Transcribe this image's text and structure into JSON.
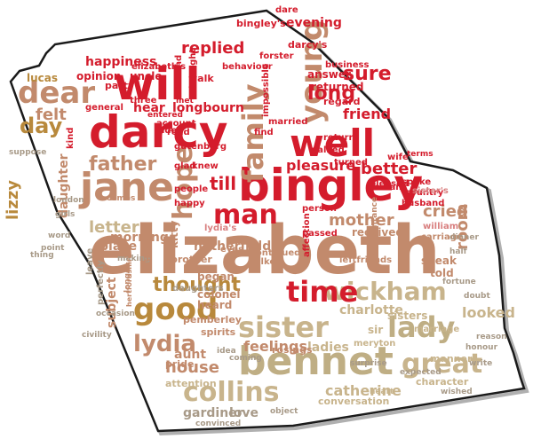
{
  "palette": {
    "red": "#d41c2c",
    "tan": "#c28a6c",
    "gold": "#b8893c",
    "beige": "#c8b48c",
    "khaki": "#bfae84",
    "pink": "#d98080",
    "grey": "#a89a88",
    "outline": "#1a1a1a",
    "shadow": "#b0b0b0"
  },
  "words": [
    {
      "text": "elizabeth",
      "color": "tan"
    },
    {
      "text": "darcy",
      "color": "red"
    },
    {
      "text": "will",
      "color": "red"
    },
    {
      "text": "bingley",
      "color": "red"
    },
    {
      "text": "bennet",
      "color": "khaki"
    },
    {
      "text": "jane",
      "color": "tan"
    },
    {
      "text": "well",
      "color": "red"
    },
    {
      "text": "dear",
      "color": "tan"
    },
    {
      "text": "collins",
      "color": "beige"
    },
    {
      "text": "man",
      "color": "red"
    },
    {
      "text": "sister",
      "color": "beige"
    },
    {
      "text": "lady",
      "color": "khaki"
    },
    {
      "text": "good",
      "color": "gold"
    },
    {
      "text": "wickham",
      "color": "beige"
    },
    {
      "text": "great",
      "color": "beige"
    },
    {
      "text": "time",
      "color": "red"
    },
    {
      "text": "young",
      "color": "tan"
    },
    {
      "text": "family",
      "color": "tan"
    },
    {
      "text": "lydia",
      "color": "tan"
    },
    {
      "text": "father",
      "color": "tan"
    },
    {
      "text": "day",
      "color": "gold"
    },
    {
      "text": "hope",
      "color": "tan"
    },
    {
      "text": "thought",
      "color": "gold"
    },
    {
      "text": "catherine",
      "color": "beige"
    },
    {
      "text": "long",
      "color": "red"
    },
    {
      "text": "sure",
      "color": "red"
    },
    {
      "text": "replied",
      "color": "red"
    },
    {
      "text": "felt",
      "color": "tan"
    },
    {
      "text": "letter",
      "color": "beige"
    },
    {
      "text": "house",
      "color": "tan"
    },
    {
      "text": "better",
      "color": "red"
    },
    {
      "text": "mother",
      "color": "tan"
    },
    {
      "text": "lizzy",
      "color": "gold"
    },
    {
      "text": "room",
      "color": "tan"
    },
    {
      "text": "cried",
      "color": "tan"
    },
    {
      "text": "friend",
      "color": "red"
    },
    {
      "text": "pleasure",
      "color": "red"
    },
    {
      "text": "looked",
      "color": "beige"
    },
    {
      "text": "till",
      "color": "red"
    },
    {
      "text": "morning",
      "color": "tan"
    },
    {
      "text": "feelings",
      "color": "tan"
    },
    {
      "text": "ladies",
      "color": "beige"
    },
    {
      "text": "aunt",
      "color": "tan"
    },
    {
      "text": "hear",
      "color": "red"
    },
    {
      "text": "longbourn",
      "color": "red"
    },
    {
      "text": "evening",
      "color": "red"
    },
    {
      "text": "netherfield",
      "color": "tan"
    },
    {
      "text": "charlotte",
      "color": "beige"
    },
    {
      "text": "place",
      "color": "tan"
    },
    {
      "text": "gardiner",
      "color": "grey"
    },
    {
      "text": "love",
      "color": "grey"
    },
    {
      "text": "daughter",
      "color": "tan"
    },
    {
      "text": "uncle",
      "color": "red"
    },
    {
      "text": "happiness",
      "color": "red"
    },
    {
      "text": "opinion",
      "color": "red"
    },
    {
      "text": "lucas",
      "color": "gold"
    },
    {
      "text": "subject",
      "color": "tan"
    },
    {
      "text": "received",
      "color": "tan"
    },
    {
      "text": "speak",
      "color": "tan"
    },
    {
      "text": "told",
      "color": "tan"
    },
    {
      "text": "answer",
      "color": "red"
    },
    {
      "text": "returned",
      "color": "red"
    },
    {
      "text": "heard",
      "color": "tan"
    },
    {
      "text": "colonel",
      "color": "tan"
    },
    {
      "text": "began",
      "color": "tan"
    },
    {
      "text": "sisters",
      "color": "beige"
    },
    {
      "text": "sir",
      "color": "beige"
    },
    {
      "text": "marriage",
      "color": "beige"
    },
    {
      "text": "conversation",
      "color": "beige"
    },
    {
      "text": "character",
      "color": "beige"
    },
    {
      "text": "manner",
      "color": "beige"
    },
    {
      "text": "attention",
      "color": "beige"
    },
    {
      "text": "pride",
      "color": "tan"
    },
    {
      "text": "kitty",
      "color": "tan"
    },
    {
      "text": "brother",
      "color": "tan"
    },
    {
      "text": "rosings",
      "color": "tan"
    },
    {
      "text": "meryton",
      "color": "beige"
    },
    {
      "text": "pemberley",
      "color": "tan"
    },
    {
      "text": "spirits",
      "color": "tan"
    },
    {
      "text": "dare",
      "color": "red"
    },
    {
      "text": "forster",
      "color": "red"
    },
    {
      "text": "darcy's",
      "color": "red"
    },
    {
      "text": "bingley's",
      "color": "red"
    },
    {
      "text": "behaviour",
      "color": "red"
    },
    {
      "text": "regard",
      "color": "red"
    },
    {
      "text": "party",
      "color": "red"
    },
    {
      "text": "three",
      "color": "red"
    },
    {
      "text": "walk",
      "color": "red"
    },
    {
      "text": "business",
      "color": "red"
    },
    {
      "text": "wife",
      "color": "red"
    },
    {
      "text": "spoke",
      "color": "red"
    },
    {
      "text": "passed",
      "color": "red"
    },
    {
      "text": "person",
      "color": "red"
    },
    {
      "text": "affection",
      "color": "red"
    },
    {
      "text": "continued",
      "color": "tan"
    },
    {
      "text": "talked",
      "color": "tan"
    },
    {
      "text": "eyes",
      "color": "tan"
    },
    {
      "text": "leftfriends",
      "color": "tan"
    },
    {
      "text": "knew",
      "color": "red"
    },
    {
      "text": "walked",
      "color": "red"
    },
    {
      "text": "return",
      "color": "red"
    },
    {
      "text": "turned",
      "color": "red"
    },
    {
      "text": "glad",
      "color": "red"
    },
    {
      "text": "people",
      "color": "red"
    },
    {
      "text": "happy",
      "color": "red"
    },
    {
      "text": "woman",
      "color": "red"
    },
    {
      "text": "country",
      "color": "red"
    },
    {
      "text": "husband",
      "color": "red"
    },
    {
      "text": "carriage",
      "color": "tan"
    },
    {
      "text": "london",
      "color": "grey"
    },
    {
      "text": "girls",
      "color": "grey"
    },
    {
      "text": "word",
      "color": "grey"
    },
    {
      "text": "point",
      "color": "grey"
    },
    {
      "text": "thing",
      "color": "grey"
    },
    {
      "text": "suppose",
      "color": "grey"
    },
    {
      "text": "leave",
      "color": "grey"
    },
    {
      "text": "perfectly",
      "color": "grey"
    },
    {
      "text": "making",
      "color": "grey"
    },
    {
      "text": "daughters",
      "color": "grey"
    },
    {
      "text": "occasion",
      "color": "grey"
    },
    {
      "text": "civility",
      "color": "grey"
    },
    {
      "text": "expected",
      "color": "grey"
    },
    {
      "text": "object",
      "color": "grey"
    },
    {
      "text": "convinced",
      "color": "grey"
    },
    {
      "text": "surprise",
      "color": "grey"
    },
    {
      "text": "honour",
      "color": "grey"
    },
    {
      "text": "wished",
      "color": "grey"
    },
    {
      "text": "write",
      "color": "grey"
    },
    {
      "text": "reason",
      "color": "grey"
    },
    {
      "text": "idea",
      "color": "grey"
    },
    {
      "text": "coming",
      "color": "grey"
    },
    {
      "text": "impossible",
      "color": "red"
    },
    {
      "text": "married",
      "color": "red"
    },
    {
      "text": "general",
      "color": "red"
    },
    {
      "text": "account",
      "color": "red"
    },
    {
      "text": "side",
      "color": "red"
    },
    {
      "text": "find",
      "color": "red"
    },
    {
      "text": "read",
      "color": "red"
    },
    {
      "text": "gutenberg",
      "color": "red"
    },
    {
      "text": "lydia's",
      "color": "pink"
    },
    {
      "text": "sister's",
      "color": "pink"
    },
    {
      "text": "william",
      "color": "pink"
    },
    {
      "text": "half",
      "color": "grey"
    },
    {
      "text": "dinner",
      "color": "grey"
    },
    {
      "text": "fortune",
      "color": "grey"
    },
    {
      "text": "mind",
      "color": "red"
    },
    {
      "text": "brought",
      "color": "red"
    },
    {
      "text": "elizabeth's",
      "color": "red"
    },
    {
      "text": "met",
      "color": "red"
    },
    {
      "text": "pleased",
      "color": "red"
    },
    {
      "text": "terms",
      "color": "red"
    },
    {
      "text": "doubt",
      "color": "grey"
    },
    {
      "text": "acquaintance",
      "color": "tan"
    },
    {
      "text": "heart",
      "color": "beige"
    },
    {
      "text": "situation",
      "color": "tan"
    },
    {
      "text": "longer",
      "color": "tan"
    },
    {
      "text": "hertfordshire",
      "color": "tan"
    },
    {
      "text": "kind",
      "color": "red"
    },
    {
      "text": "comes",
      "color": "tan"
    },
    {
      "text": "entered",
      "color": "red"
    }
  ]
}
